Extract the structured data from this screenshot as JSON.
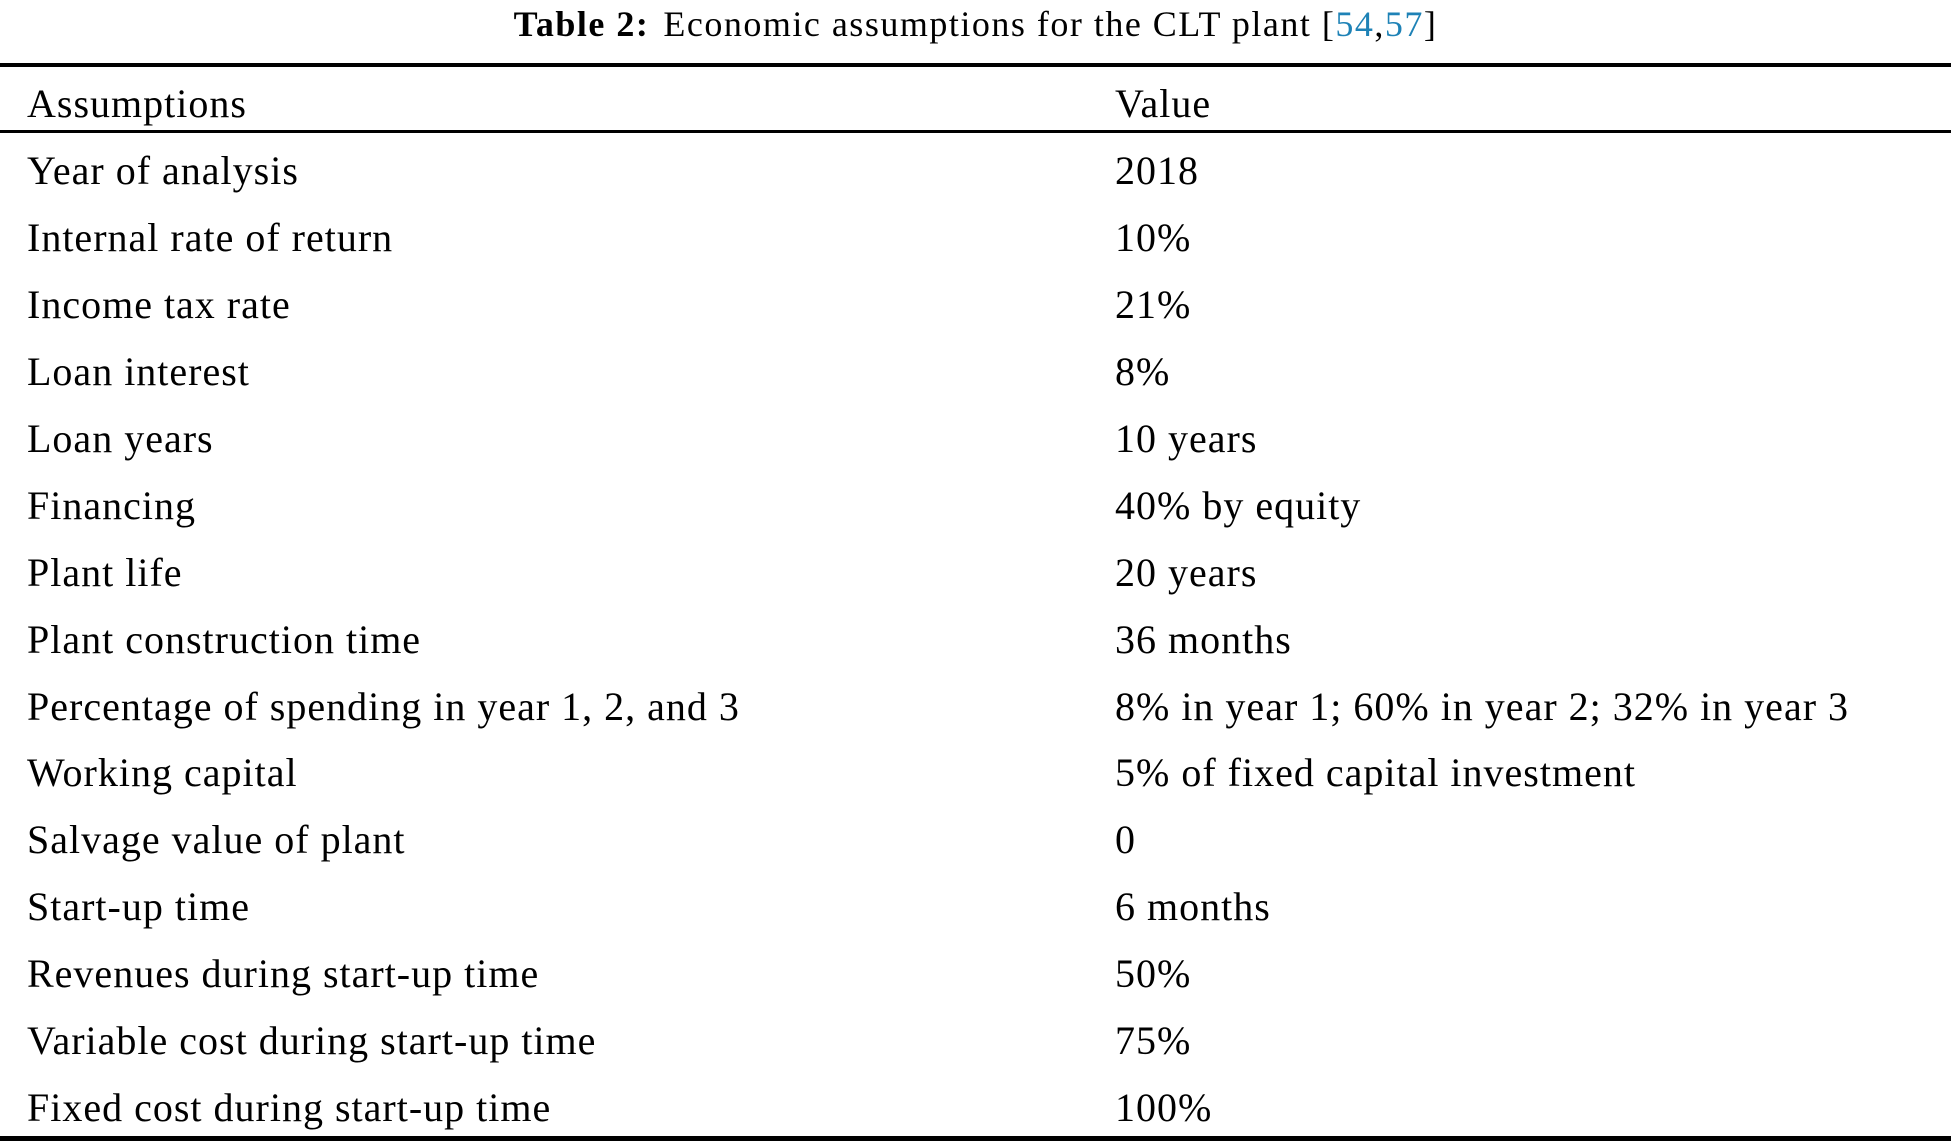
{
  "caption": {
    "label": "Table 2:",
    "text": "Economic assumptions for the CLT plant",
    "citation": {
      "open_bracket": "[",
      "refs": [
        "54",
        "57"
      ],
      "separator": ",",
      "close_bracket": "]"
    }
  },
  "colors": {
    "citation_link": "#1e82b6",
    "text": "#000000",
    "rule": "#000000"
  },
  "table": {
    "columns": [
      "Assumptions",
      "Value"
    ],
    "rows": [
      {
        "assumption": "Year of analysis",
        "value": "2018"
      },
      {
        "assumption": "Internal rate of return",
        "value": "10%"
      },
      {
        "assumption": "Income tax rate",
        "value": "21%"
      },
      {
        "assumption": "Loan interest",
        "value": "8%"
      },
      {
        "assumption": "Loan years",
        "value": "10 years"
      },
      {
        "assumption": "Financing",
        "value": "40% by equity"
      },
      {
        "assumption": "Plant life",
        "value": "20 years"
      },
      {
        "assumption": "Plant construction time",
        "value": "36 months"
      },
      {
        "assumption": "Percentage of spending in year 1, 2, and 3",
        "value": "8% in year 1; 60% in year 2; 32% in year 3"
      },
      {
        "assumption": "Working capital",
        "value": "5% of fixed capital investment"
      },
      {
        "assumption": "Salvage value of plant",
        "value": "0"
      },
      {
        "assumption": "Start-up time",
        "value": "6 months"
      },
      {
        "assumption": "Revenues during start-up time",
        "value": "50%"
      },
      {
        "assumption": "Variable cost during start-up time",
        "value": "75%"
      },
      {
        "assumption": "Fixed cost during start-up time",
        "value": "100%"
      }
    ]
  }
}
